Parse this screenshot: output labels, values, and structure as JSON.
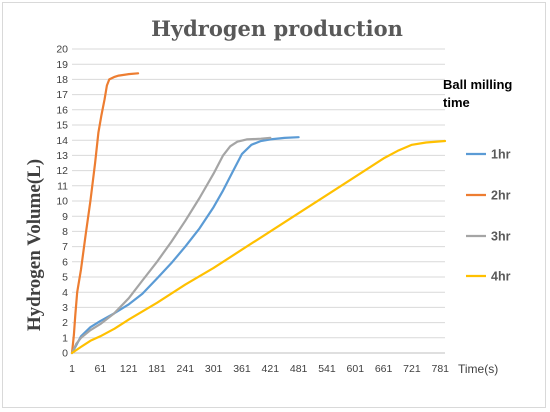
{
  "chart_data": {
    "type": "line",
    "title": "Hydrogen production",
    "xlabel": "Time(s)",
    "ylabel": "Hydrogen Volume(L)",
    "xlim": [
      1,
      791
    ],
    "ylim": [
      0,
      20
    ],
    "x_ticks": [
      1,
      61,
      121,
      181,
      241,
      301,
      361,
      421,
      481,
      541,
      601,
      661,
      721,
      781
    ],
    "y_ticks": [
      0,
      1,
      2,
      3,
      4,
      5,
      6,
      7,
      8,
      9,
      10,
      11,
      12,
      13,
      14,
      15,
      16,
      17,
      18,
      19,
      20
    ],
    "grid": "horizontal",
    "legend": {
      "title_lines": [
        "Ball milling",
        "time"
      ],
      "placement": "right"
    },
    "series": [
      {
        "name": "1hr",
        "color": "#5b9bd5",
        "points": [
          [
            1,
            0
          ],
          [
            10,
            0.5
          ],
          [
            20,
            1.1
          ],
          [
            40,
            1.7
          ],
          [
            61,
            2.1
          ],
          [
            90,
            2.6
          ],
          [
            121,
            3.2
          ],
          [
            150,
            3.9
          ],
          [
            181,
            4.9
          ],
          [
            211,
            5.9
          ],
          [
            241,
            7.0
          ],
          [
            271,
            8.2
          ],
          [
            301,
            9.6
          ],
          [
            321,
            10.7
          ],
          [
            341,
            11.9
          ],
          [
            361,
            13.1
          ],
          [
            381,
            13.7
          ],
          [
            401,
            13.95
          ],
          [
            421,
            14.05
          ],
          [
            451,
            14.15
          ],
          [
            481,
            14.2
          ]
        ]
      },
      {
        "name": "2hr",
        "color": "#ed7d31",
        "points": [
          [
            1,
            0
          ],
          [
            5,
            1.2
          ],
          [
            8,
            2.5
          ],
          [
            12,
            4.0
          ],
          [
            20,
            5.5
          ],
          [
            30,
            7.8
          ],
          [
            40,
            10.0
          ],
          [
            50,
            12.5
          ],
          [
            57,
            14.5
          ],
          [
            63,
            15.6
          ],
          [
            70,
            16.7
          ],
          [
            75,
            17.6
          ],
          [
            80,
            18.0
          ],
          [
            90,
            18.15
          ],
          [
            100,
            18.25
          ],
          [
            121,
            18.35
          ],
          [
            141,
            18.4
          ]
        ]
      },
      {
        "name": "3hr",
        "color": "#a5a5a5",
        "points": [
          [
            1,
            0
          ],
          [
            10,
            0.6
          ],
          [
            20,
            1.0
          ],
          [
            40,
            1.5
          ],
          [
            61,
            1.9
          ],
          [
            90,
            2.6
          ],
          [
            121,
            3.6
          ],
          [
            151,
            4.8
          ],
          [
            181,
            6.0
          ],
          [
            211,
            7.3
          ],
          [
            241,
            8.7
          ],
          [
            271,
            10.2
          ],
          [
            301,
            11.8
          ],
          [
            321,
            13.0
          ],
          [
            336,
            13.6
          ],
          [
            351,
            13.9
          ],
          [
            371,
            14.05
          ],
          [
            401,
            14.1
          ],
          [
            421,
            14.15
          ]
        ]
      },
      {
        "name": "4hr",
        "color": "#ffc000",
        "points": [
          [
            1,
            0
          ],
          [
            20,
            0.4
          ],
          [
            40,
            0.8
          ],
          [
            61,
            1.1
          ],
          [
            91,
            1.6
          ],
          [
            121,
            2.2
          ],
          [
            181,
            3.3
          ],
          [
            241,
            4.5
          ],
          [
            301,
            5.6
          ],
          [
            361,
            6.8
          ],
          [
            421,
            8.0
          ],
          [
            481,
            9.2
          ],
          [
            541,
            10.4
          ],
          [
            601,
            11.6
          ],
          [
            661,
            12.8
          ],
          [
            691,
            13.3
          ],
          [
            721,
            13.7
          ],
          [
            751,
            13.85
          ],
          [
            791,
            13.95
          ]
        ]
      }
    ]
  }
}
